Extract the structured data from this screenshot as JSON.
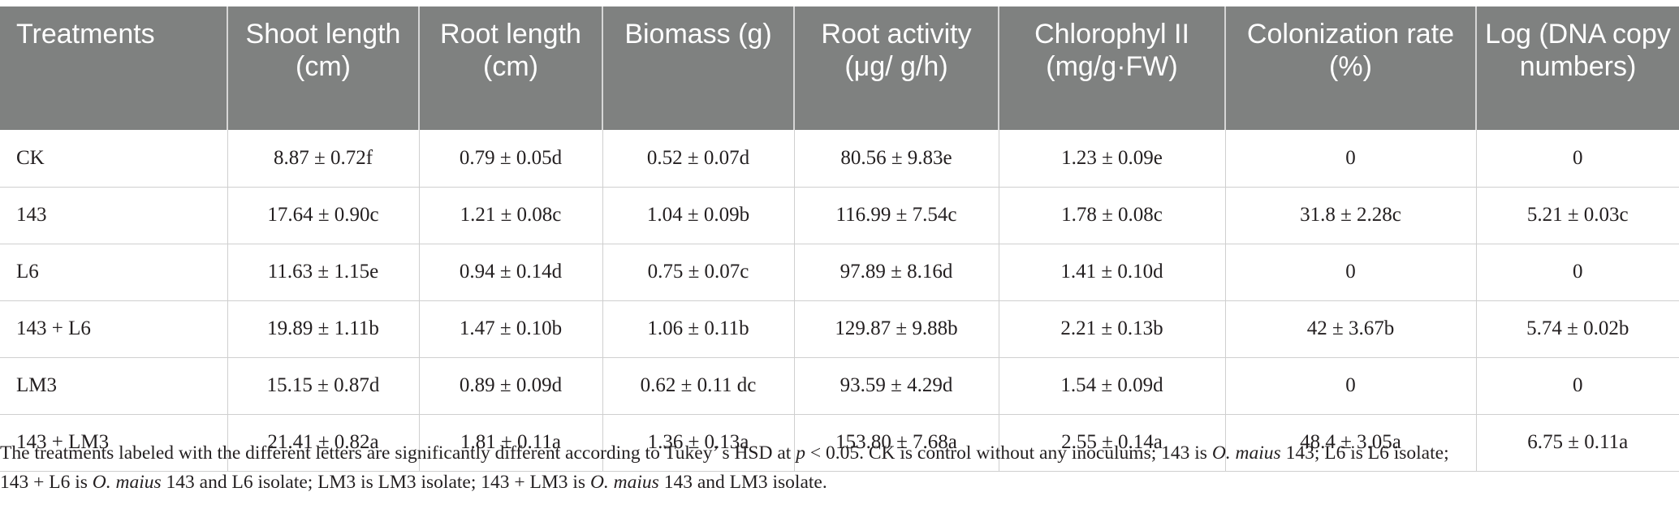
{
  "table": {
    "headers": [
      "Treatments",
      "Shoot length (cm)",
      "Root length (cm)",
      "Biomass (g)",
      "Root activity (μg/ g/h)",
      "Chlorophyl II (mg/g·FW)",
      "Colonization rate (%)",
      "Log (DNA copy numbers)"
    ],
    "rows": [
      [
        "CK",
        "8.87 ± 0.72f",
        "0.79 ± 0.05d",
        "0.52 ± 0.07d",
        "80.56 ± 9.83e",
        "1.23 ± 0.09e",
        "0",
        "0"
      ],
      [
        "143",
        "17.64 ± 0.90c",
        "1.21 ± 0.08c",
        "1.04 ± 0.09b",
        "116.99 ± 7.54c",
        "1.78 ± 0.08c",
        "31.8 ± 2.28c",
        "5.21 ± 0.03c"
      ],
      [
        "L6",
        "11.63 ± 1.15e",
        "0.94 ± 0.14d",
        "0.75 ± 0.07c",
        "97.89 ± 8.16d",
        "1.41 ± 0.10d",
        "0",
        "0"
      ],
      [
        "143 + L6",
        "19.89 ± 1.11b",
        "1.47 ± 0.10b",
        "1.06 ± 0.11b",
        "129.87 ± 9.88b",
        "2.21 ± 0.13b",
        "42 ± 3.67b",
        "5.74 ± 0.02b"
      ],
      [
        "LM3",
        "15.15 ± 0.87d",
        "0.89 ± 0.09d",
        "0.62 ± 0.11 dc",
        "93.59 ± 4.29d",
        "1.54 ± 0.09d",
        "0",
        "0"
      ],
      [
        "143 + LM3",
        "21.41 ± 0.82a",
        "1.81 ± 0.11a",
        "1.36 ± 0.13a",
        "153.80 ± 7.68a",
        "2.55 ± 0.14a",
        "48.4 ± 3.05a",
        "6.75 ± 0.11a"
      ]
    ]
  },
  "footnote": {
    "s1": "The treatments labeled with the different letters are significantly different according to Tukey’ s HSD at ",
    "p": "p",
    "s2": " < 0.05. CK is control without any inoculums; 143 is ",
    "sp1": "O. maius",
    "s3": " 143; L6 is L6 isolate;",
    "s4": "143 + L6 is ",
    "sp2": "O. maius",
    "s5": " 143 and L6 isolate; LM3 is LM3 isolate; 143 + LM3 is ",
    "sp3": "O. maius",
    "s6": " 143 and LM3 isolate."
  }
}
